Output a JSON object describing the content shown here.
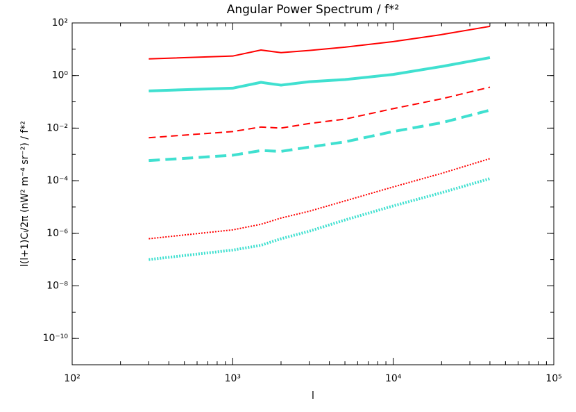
{
  "chart_data": {
    "type": "line",
    "title": "Angular Power Spectrum / f*²",
    "x_label": "l",
    "y_label": "l(l+1)Cₗ/2π (nW² m⁻⁴ sr⁻²) / f*²",
    "xlog": true,
    "ylog": true,
    "xlim": [
      100,
      100000
    ],
    "ylim": [
      1e-11,
      100
    ],
    "xticks": [
      {
        "value": 100,
        "label": "10²"
      },
      {
        "value": 1000,
        "label": "10³"
      },
      {
        "value": 10000,
        "label": "10⁴"
      },
      {
        "value": 100000,
        "label": "10⁵"
      }
    ],
    "yticks": [
      {
        "value": 1e-10,
        "label": "10⁻¹⁰"
      },
      {
        "value": 1e-08,
        "label": "10⁻⁸"
      },
      {
        "value": 1e-06,
        "label": "10⁻⁶"
      },
      {
        "value": 0.0001,
        "label": "10⁻⁴"
      },
      {
        "value": 0.01,
        "label": "10⁻²"
      },
      {
        "value": 1,
        "label": "10⁰"
      },
      {
        "value": 100,
        "label": "10²"
      }
    ],
    "x": [
      300,
      1000,
      1500,
      2000,
      3000,
      5000,
      10000,
      20000,
      40000
    ],
    "series": [
      {
        "color": "#ff0000",
        "dash": "solid",
        "width": 2,
        "values": [
          4.3,
          5.5,
          9.3,
          7.4,
          9,
          12,
          19.5,
          36,
          74
        ]
      },
      {
        "color": "#40e0d0",
        "dash": "solid",
        "width": 4,
        "values": [
          0.26,
          0.33,
          0.55,
          0.43,
          0.58,
          0.7,
          1.1,
          2.2,
          4.8
        ]
      },
      {
        "color": "#ff0000",
        "dash": "dashed",
        "width": 2,
        "values": [
          0.0043,
          0.0074,
          0.011,
          0.01,
          0.015,
          0.022,
          0.055,
          0.13,
          0.36
        ]
      },
      {
        "color": "#40e0d0",
        "dash": "dashed",
        "width": 4,
        "values": [
          0.00058,
          0.00093,
          0.0014,
          0.0013,
          0.0019,
          0.003,
          0.0074,
          0.016,
          0.048
        ]
      },
      {
        "color": "#ff0000",
        "dash": "dotted",
        "width": 2,
        "values": [
          6.2e-07,
          1.35e-06,
          2.2e-06,
          3.8e-06,
          6.9e-06,
          1.7e-05,
          5.8e-05,
          0.00019,
          0.00069
        ]
      },
      {
        "color": "#40e0d0",
        "dash": "dotted",
        "width": 4,
        "values": [
          1e-07,
          2.3e-07,
          3.5e-07,
          6.2e-07,
          1.2e-06,
          3.2e-06,
          1.1e-05,
          3.5e-05,
          0.00012
        ]
      }
    ]
  }
}
